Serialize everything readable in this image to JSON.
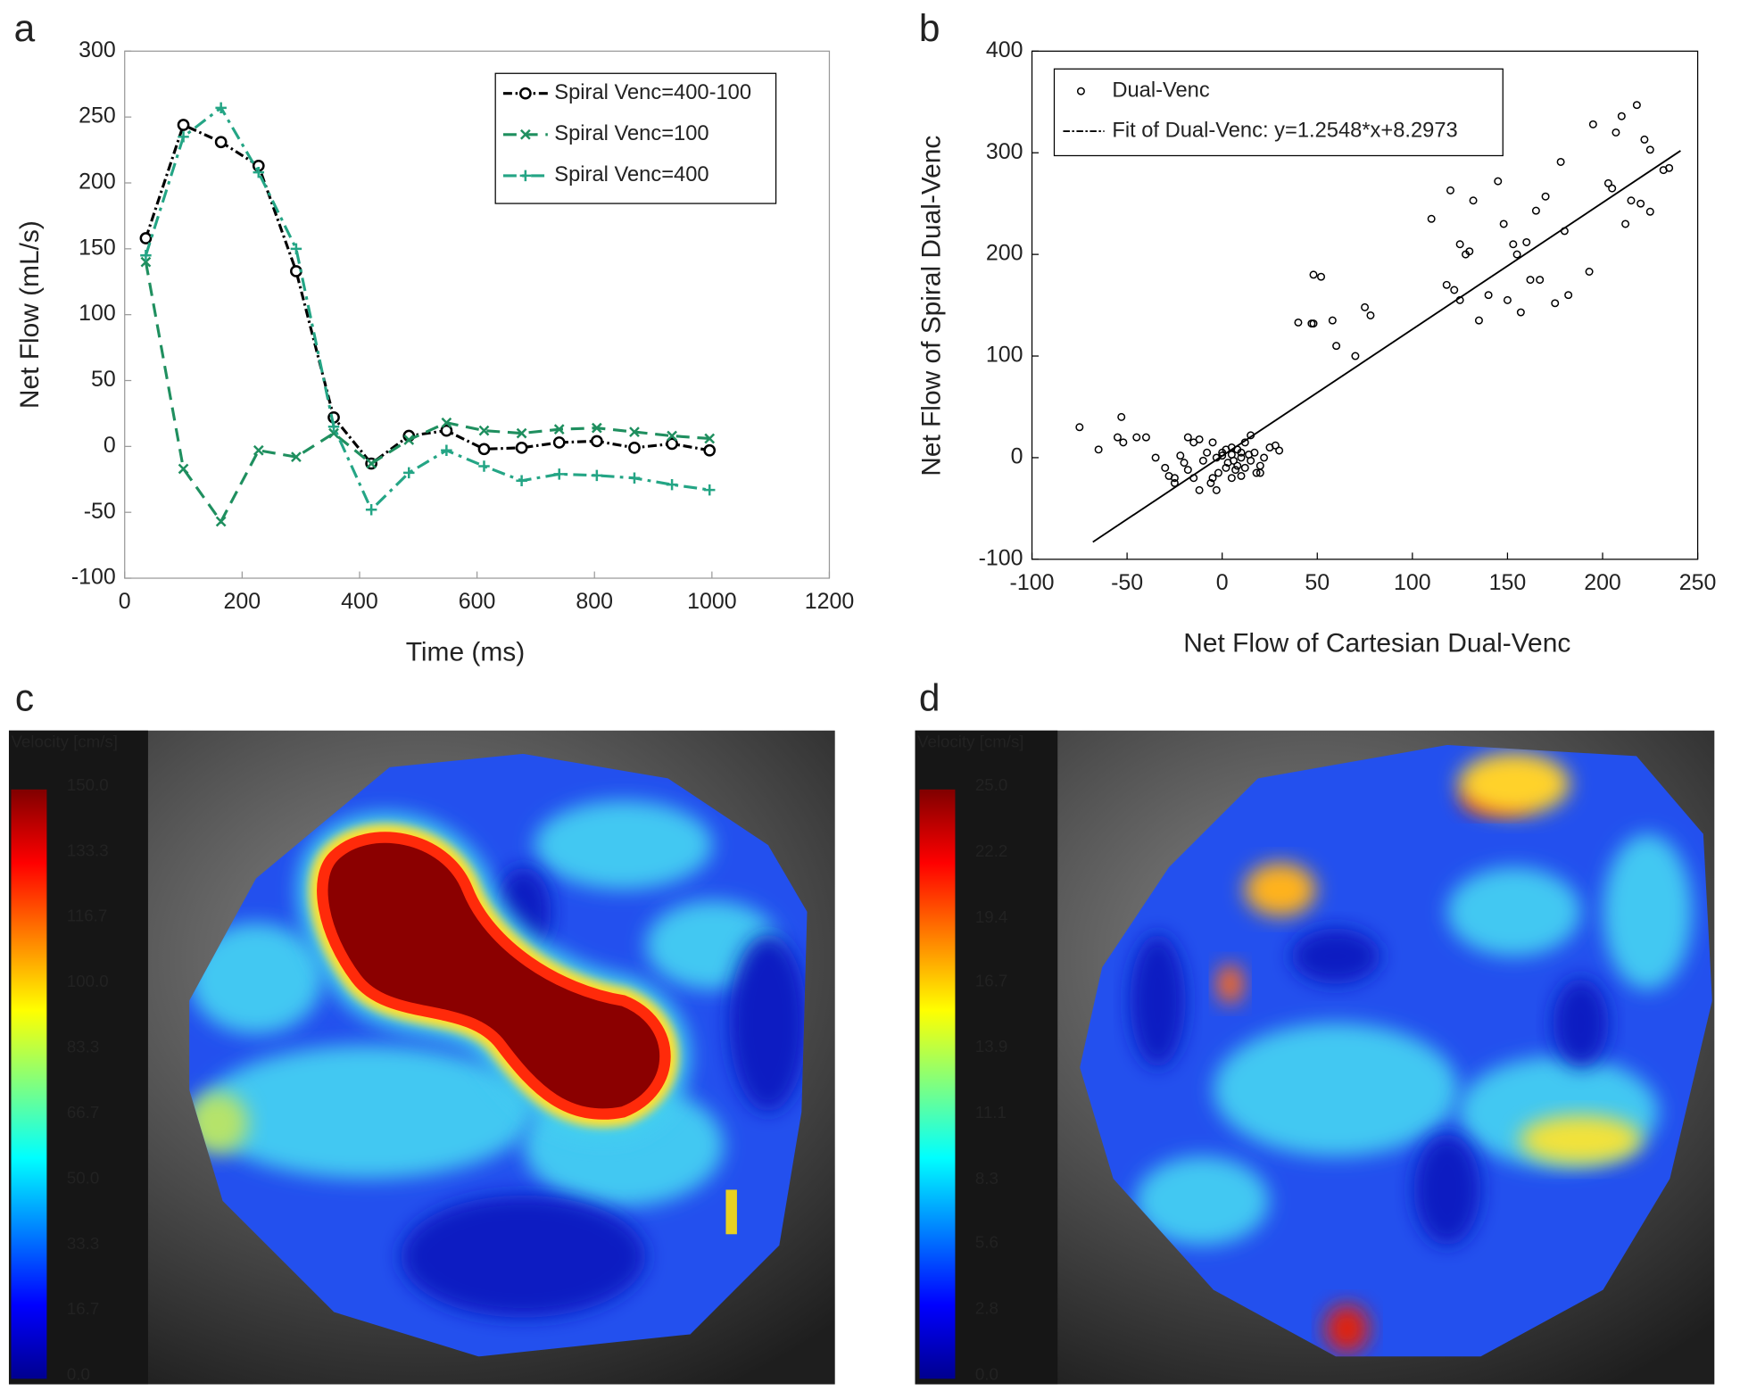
{
  "chart_data": [
    {
      "type": "line",
      "panel": "a",
      "x_label": "Time (ms)",
      "y_label": "Net Flow (mL/s)",
      "xlim": [
        0,
        1200
      ],
      "xticks": [
        0,
        200,
        400,
        600,
        800,
        1000,
        1200
      ],
      "ylim": [
        -100,
        300
      ],
      "yticks": [
        -100,
        -50,
        0,
        50,
        100,
        150,
        200,
        250,
        300
      ],
      "legend": "upper right",
      "grid": false,
      "x": [
        36,
        100,
        164,
        228,
        292,
        356,
        420,
        484,
        548,
        612,
        676,
        740,
        804,
        868,
        932,
        996
      ],
      "series": [
        {
          "name": "Spiral Venc=400-100",
          "color": "#000000",
          "marker": "circle",
          "dash": "8,3,2,3",
          "values": [
            158,
            244,
            231,
            213,
            133,
            22,
            -13,
            8,
            12,
            -2,
            -1,
            3,
            4,
            -1,
            2,
            -3
          ]
        },
        {
          "name": "Spiral Venc=100",
          "color": "#1f8f5f",
          "marker": "x",
          "dash": "12,7",
          "values": [
            140,
            -17,
            -57,
            -3,
            -8,
            10,
            -13,
            5,
            18,
            12,
            10,
            13,
            14,
            11,
            8,
            6
          ]
        },
        {
          "name": "Spiral Venc=400",
          "color": "#24a585",
          "marker": "plus",
          "dash": "12,5,3,5",
          "values": [
            145,
            235,
            257,
            208,
            150,
            15,
            -48,
            -20,
            -3,
            -15,
            -26,
            -21,
            -22,
            -24,
            -29,
            -33
          ]
        }
      ]
    },
    {
      "type": "scatter",
      "panel": "b",
      "x_label": "Net Flow of Cartesian Dual-Venc",
      "y_label": "Net Flow of Spiral Dual-Venc",
      "xlim": [
        -100,
        250
      ],
      "xticks": [
        -100,
        -50,
        0,
        50,
        100,
        150,
        200,
        250
      ],
      "ylim": [
        -100,
        400
      ],
      "yticks": [
        -100,
        0,
        100,
        200,
        300,
        400
      ],
      "legend": "upper left",
      "grid": false,
      "series": [
        {
          "name": "Dual-Venc",
          "color": "#000000",
          "mode": "markers",
          "x": [
            -75,
            -65,
            -55,
            -53,
            -52,
            -45,
            -40,
            -35,
            -30,
            -25,
            -25,
            -28,
            -22,
            -20,
            -18,
            -18,
            -15,
            -15,
            -12,
            -12,
            -10,
            -8,
            -6,
            -5,
            -5,
            -3,
            -3,
            -2,
            0,
            0,
            2,
            2,
            3,
            5,
            5,
            5,
            6,
            7,
            8,
            8,
            10,
            10,
            10,
            12,
            12,
            14,
            15,
            15,
            17,
            18,
            20,
            20,
            22,
            25,
            28,
            30,
            40,
            47,
            48,
            48,
            52,
            58,
            60,
            70,
            75,
            78,
            110,
            118,
            120,
            122,
            125,
            125,
            128,
            130,
            132,
            135,
            140,
            145,
            148,
            150,
            153,
            155,
            157,
            160,
            162,
            165,
            167,
            170,
            175,
            178,
            180,
            182,
            193,
            195,
            203,
            205,
            207,
            210,
            212,
            215,
            218,
            220,
            222,
            225,
            225,
            232,
            235
          ],
          "values": [
            30,
            8,
            20,
            40,
            15,
            20,
            20,
            0,
            -10,
            -20,
            -25,
            -18,
            2,
            -5,
            20,
            -12,
            15,
            -20,
            18,
            -32,
            -3,
            5,
            -25,
            15,
            -20,
            0,
            -32,
            -15,
            5,
            2,
            8,
            -10,
            -5,
            3,
            10,
            -20,
            -3,
            -12,
            8,
            -8,
            0,
            5,
            -18,
            15,
            -10,
            3,
            22,
            -3,
            5,
            -15,
            -8,
            -15,
            0,
            10,
            12,
            7,
            133,
            132,
            132,
            180,
            178,
            135,
            110,
            100,
            148,
            140,
            235,
            170,
            263,
            165,
            210,
            155,
            200,
            203,
            253,
            135,
            160,
            272,
            230,
            155,
            210,
            200,
            143,
            212,
            175,
            243,
            175,
            257,
            152,
            291,
            223,
            160,
            183,
            328,
            270,
            265,
            320,
            336,
            230,
            253,
            347,
            250,
            313,
            303,
            242,
            283,
            285
          ]
        },
        {
          "name": "Fit of Dual-Venc: y=1.2548*x+8.2973",
          "color": "#000000",
          "mode": "line",
          "dash": "6,2,2,2",
          "x": [
            -68,
            241
          ],
          "values": [
            -83,
            302
          ]
        }
      ]
    },
    {
      "type": "heatmap",
      "panel": "c",
      "colorbar_label": "Velocity [cm/s]",
      "clim": [
        0,
        150
      ],
      "colorbar_ticks": [
        {
          "value": 0,
          "label": "0.0"
        },
        16.7,
        33.3,
        {
          "value": 50,
          "label": "50.0"
        },
        66.7,
        83.3,
        {
          "value": 100,
          "label": "100.0"
        },
        116.7,
        133.3,
        {
          "value": 150,
          "label": "150.0"
        }
      ]
    },
    {
      "type": "heatmap",
      "panel": "d",
      "colorbar_label": "Velocity [cm/s]",
      "clim": [
        0,
        25
      ],
      "colorbar_ticks": [
        {
          "value": 0,
          "label": "0.0"
        },
        2.8,
        5.6,
        8.3,
        11.1,
        13.9,
        16.7,
        19.4,
        22.2,
        {
          "value": 25,
          "label": "25.0"
        }
      ]
    }
  ]
}
